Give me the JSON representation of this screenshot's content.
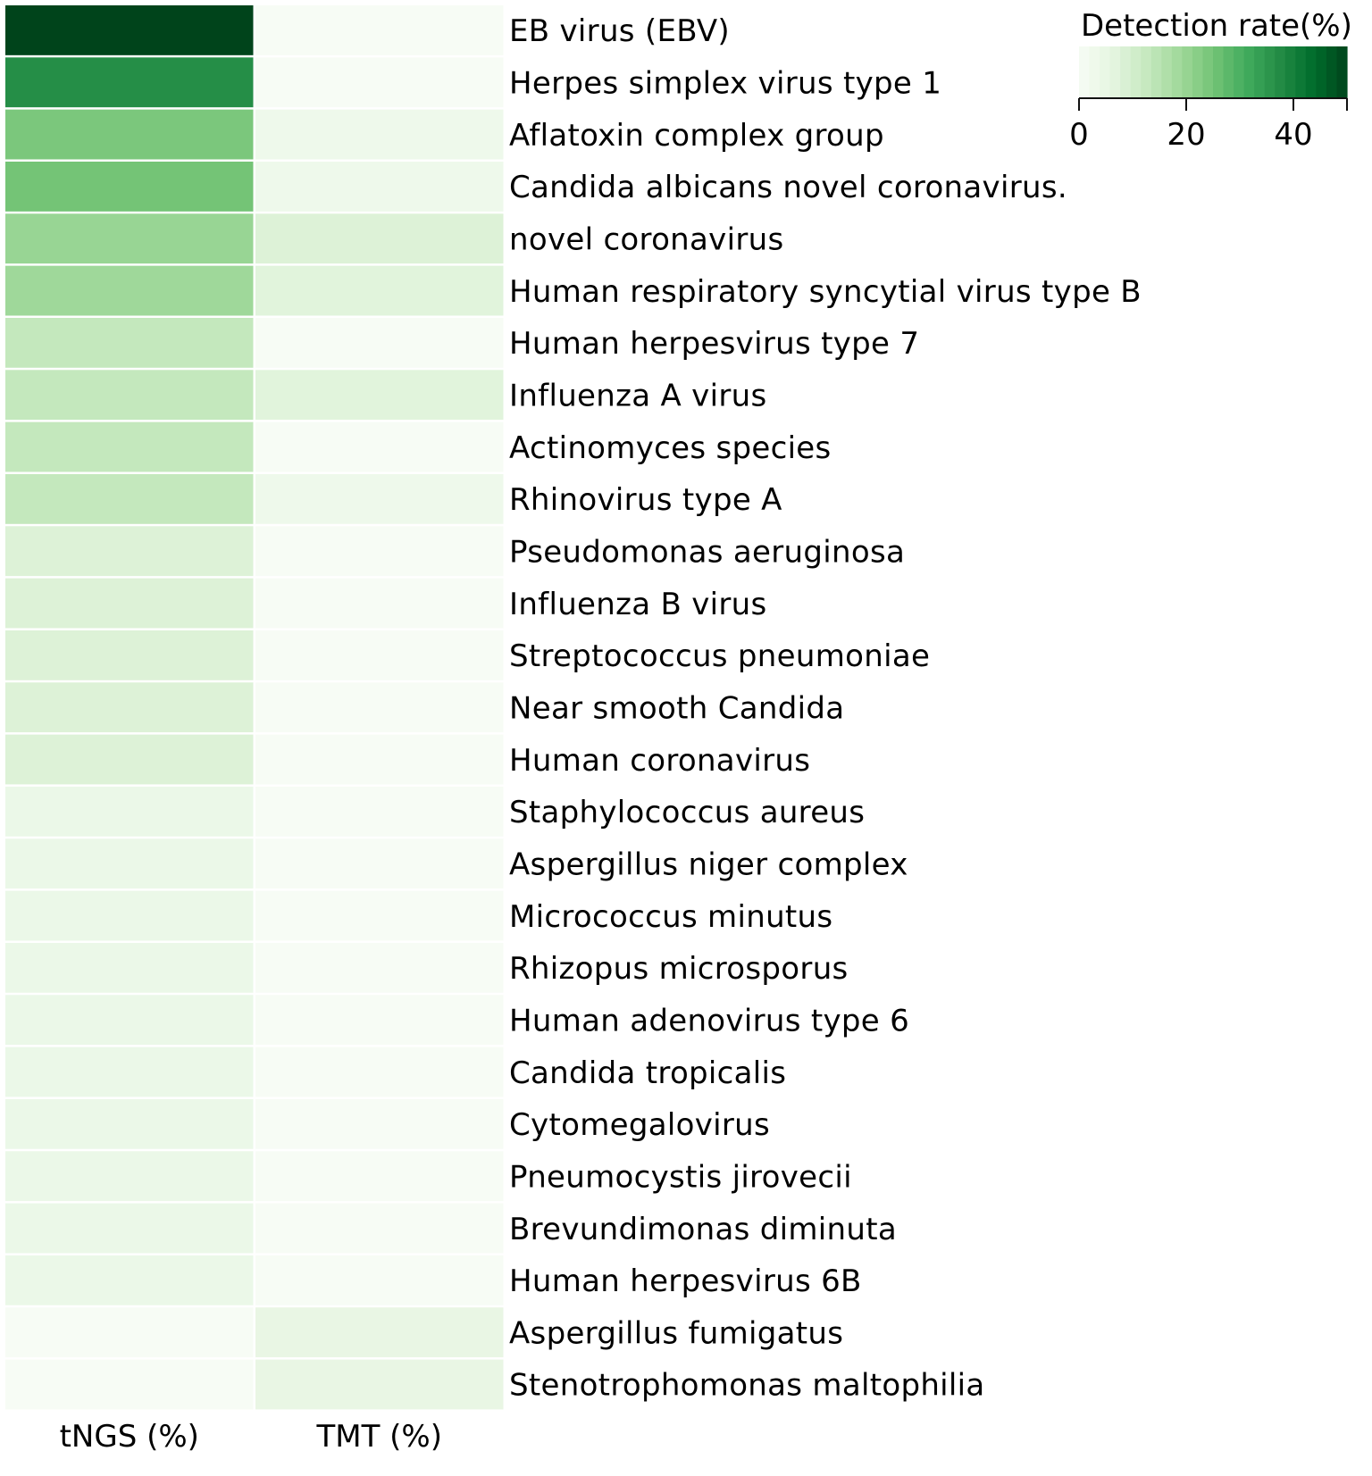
{
  "chart_data": {
    "type": "heatmap",
    "columns": [
      "tNGS (%)",
      "TMT (%)"
    ],
    "rows": [
      "EB virus (EBV)",
      "Herpes simplex virus type 1",
      "Aflatoxin complex group",
      "Candida albicans novel coronavirus.",
      "novel coronavirus",
      "Human respiratory syncytial virus type B",
      "Human herpesvirus type 7",
      "Influenza A virus",
      "Actinomyces species",
      "Rhinovirus type A",
      "Pseudomonas aeruginosa",
      "Influenza B virus",
      "Streptococcus pneumoniae",
      "Near smooth Candida",
      "Human coronavirus",
      "Staphylococcus aureus",
      "Aspergillus niger complex",
      "Micrococcus minutus",
      "Rhizopus microsporus",
      "Human adenovirus type 6",
      "Candida tropicalis",
      "Cytomegalovirus",
      "Pneumocystis jirovecii",
      "Brevundimonas diminuta",
      "Human herpesvirus 6B",
      "Aspergillus fumigatus",
      "Stenotrophomonas maltophilia"
    ],
    "values": [
      [
        50,
        0
      ],
      [
        37,
        0
      ],
      [
        24,
        3
      ],
      [
        25,
        3
      ],
      [
        20,
        8
      ],
      [
        19,
        7
      ],
      [
        13,
        0
      ],
      [
        13,
        7
      ],
      [
        13,
        0
      ],
      [
        13,
        3
      ],
      [
        8,
        0
      ],
      [
        8,
        0
      ],
      [
        8,
        0
      ],
      [
        8,
        0
      ],
      [
        8,
        0
      ],
      [
        4,
        0
      ],
      [
        4,
        0
      ],
      [
        4,
        0
      ],
      [
        4,
        0
      ],
      [
        4,
        0
      ],
      [
        4,
        0
      ],
      [
        4,
        0
      ],
      [
        4,
        0
      ],
      [
        4,
        0
      ],
      [
        4,
        0
      ],
      [
        0,
        5
      ],
      [
        0,
        5
      ]
    ],
    "colorbar": {
      "title": "Detection rate(%)",
      "range": [
        0,
        50
      ],
      "ticks": [
        0,
        20,
        40
      ],
      "steps": 26,
      "colormap": "Greens",
      "placement": "top-right"
    }
  }
}
